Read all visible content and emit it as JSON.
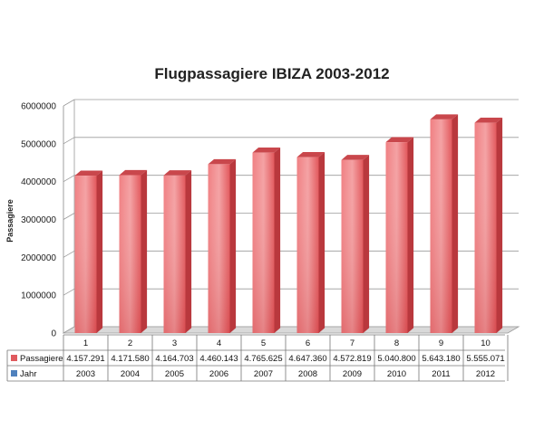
{
  "chart_data": {
    "type": "bar",
    "title": "Flugpassagiere IBIZA 2003-2012",
    "ylabel": "Passagiere",
    "xlabel": "",
    "ylim": [
      0,
      6000000
    ],
    "yticks": [
      "0",
      "1000000",
      "2000000",
      "3000000",
      "4000000",
      "5000000",
      "6000000"
    ],
    "categories": [
      "1",
      "2",
      "3",
      "4",
      "5",
      "6",
      "7",
      "8",
      "9",
      "10"
    ],
    "series": [
      {
        "name": "Passagiere",
        "values": [
          4157291,
          4171580,
          4164703,
          4460143,
          4765625,
          4647360,
          4572819,
          5040800,
          5643180,
          5555071
        ],
        "labels": [
          "4.157.291",
          "4.171.580",
          "4.164.703",
          "4.460.143",
          "4.765.625",
          "4.647.360",
          "4.572.819",
          "5.040.800",
          "5.643.180",
          "5.555.071"
        ],
        "color": "#e05a5e"
      },
      {
        "name": "Jahr",
        "values": [
          "2003",
          "2004",
          "2005",
          "2006",
          "2007",
          "2008",
          "2009",
          "2010",
          "2011",
          "2012"
        ],
        "color": "#4f81bd"
      }
    ],
    "grid": true,
    "legend": "table"
  }
}
